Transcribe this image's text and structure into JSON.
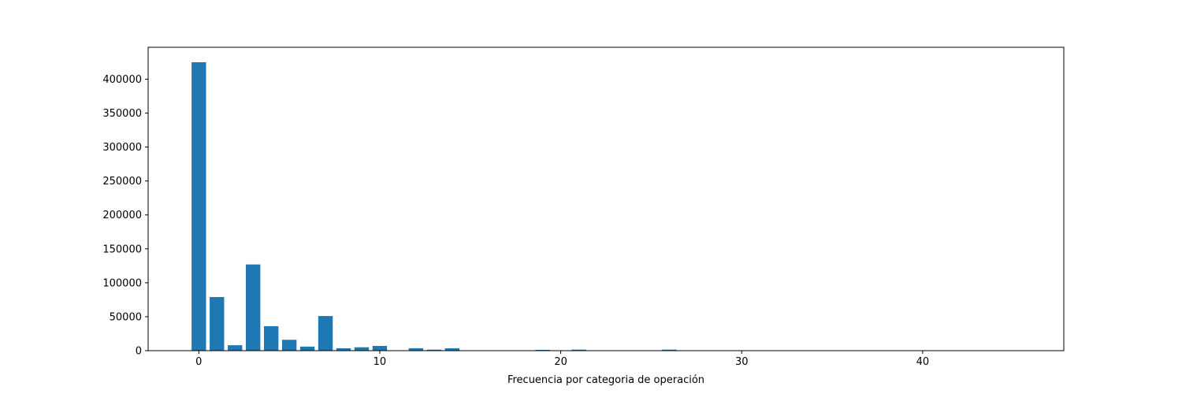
{
  "chart_data": {
    "type": "bar",
    "title": "",
    "xlabel": "Frecuencia por categoria de operación",
    "ylabel": "",
    "xlim": [
      -2.8,
      47.8
    ],
    "ylim": [
      0,
      447000
    ],
    "xticks": [
      0,
      10,
      20,
      30,
      40
    ],
    "yticks": [
      0,
      50000,
      100000,
      150000,
      200000,
      250000,
      300000,
      350000,
      400000
    ],
    "bar_width": 0.8,
    "color": "#1f77b4",
    "grid": false,
    "legend": "none",
    "x": [
      0,
      1,
      2,
      3,
      4,
      5,
      6,
      7,
      8,
      9,
      10,
      11,
      12,
      13,
      14,
      15,
      16,
      17,
      18,
      19,
      20,
      21,
      22,
      23,
      24,
      25,
      26,
      27,
      28,
      29,
      30,
      31,
      32,
      33,
      34,
      35,
      36,
      37,
      38,
      39,
      40,
      41,
      42,
      43,
      44,
      45
    ],
    "values": [
      425000,
      79000,
      8000,
      127000,
      36000,
      16000,
      6000,
      51000,
      3500,
      5000,
      7000,
      500,
      3500,
      1500,
      3500,
      200,
      200,
      200,
      300,
      1200,
      300,
      1500,
      200,
      200,
      200,
      200,
      1500,
      100,
      100,
      100,
      100,
      100,
      100,
      100,
      100,
      100,
      100,
      100,
      100,
      100,
      100,
      100,
      100,
      100,
      100,
      100
    ]
  }
}
